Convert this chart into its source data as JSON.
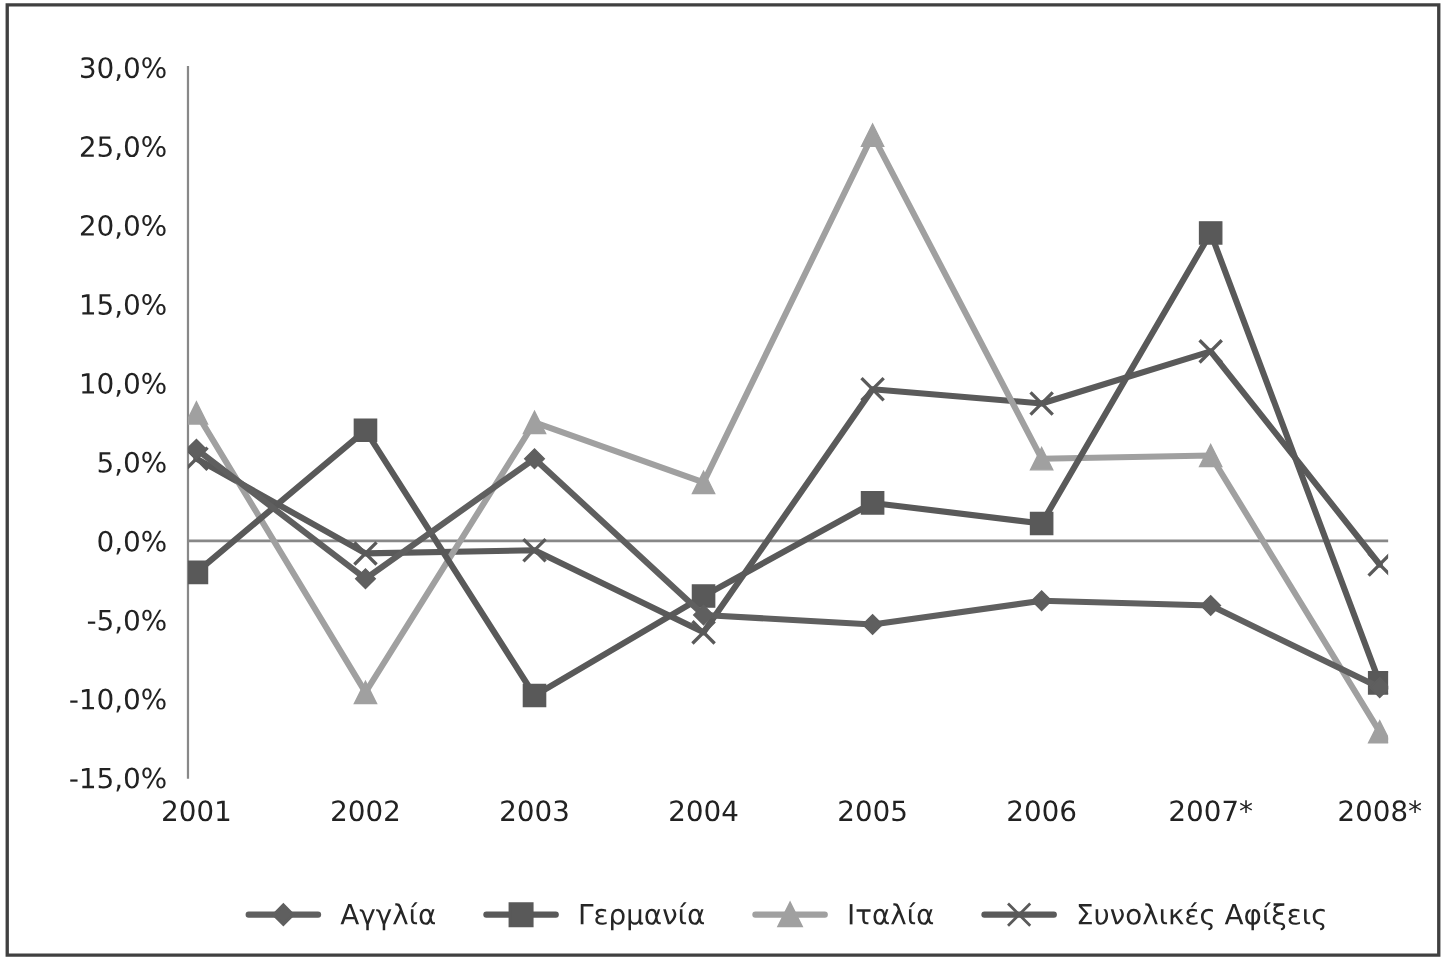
{
  "chart_data": {
    "type": "line",
    "categories": [
      "2001",
      "2002",
      "2003",
      "2004",
      "2005",
      "2006",
      "2007*",
      "2008*"
    ],
    "series": [
      {
        "name": "Αγγλία",
        "color": "#5f5f5f",
        "marker": "diamond",
        "values": [
          5.8,
          -2.4,
          5.2,
          -4.7,
          -5.3,
          -3.8,
          -4.1,
          -9.3
        ]
      },
      {
        "name": "Γερμανία",
        "color": "#595959",
        "marker": "square",
        "values": [
          -2.0,
          7.0,
          -9.8,
          -3.5,
          2.4,
          1.1,
          19.5,
          -9.0
        ]
      },
      {
        "name": "Ιταλία",
        "color": "#a0a0a0",
        "marker": "triangle",
        "values": [
          8.1,
          -9.6,
          7.5,
          3.7,
          25.7,
          5.2,
          5.4,
          -12.1
        ]
      },
      {
        "name": "Συνολικές Αφίξεις",
        "color": "#5a5a5a",
        "marker": "cross",
        "values": [
          5.2,
          -0.8,
          -0.6,
          -5.8,
          9.6,
          8.7,
          12.0,
          -1.5
        ]
      }
    ],
    "ylim": [
      -15,
      30
    ],
    "yticks": [
      {
        "value": -15,
        "label": "-15,0%"
      },
      {
        "value": -10,
        "label": "-10,0%"
      },
      {
        "value": -5,
        "label": "-5,0%"
      },
      {
        "value": 0,
        "label": "0,0%"
      },
      {
        "value": 5,
        "label": "5,0%"
      },
      {
        "value": 10,
        "label": "10,0%"
      },
      {
        "value": 15,
        "label": "15,0%"
      },
      {
        "value": 20,
        "label": "20,0%"
      },
      {
        "value": 25,
        "label": "25,0%"
      },
      {
        "value": 30,
        "label": "30,0%"
      }
    ],
    "ref_lines": [
      {
        "axis": "y",
        "value": 0,
        "color": "#888888"
      }
    ],
    "legend": "bottom",
    "grid": false,
    "line_style": "solid"
  }
}
